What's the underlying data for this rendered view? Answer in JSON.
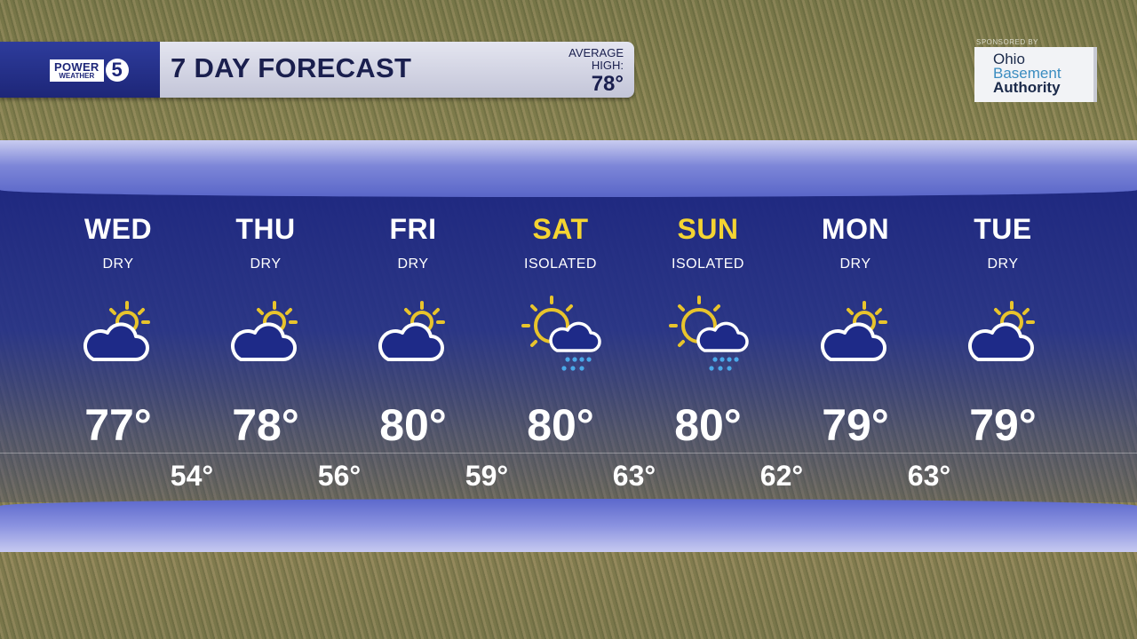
{
  "header": {
    "logo_text": "POWER OF 5 WEATHER",
    "logo_power": "POWER",
    "logo_weather": "WEATHER",
    "logo_number": "5",
    "title": "7 DAY FORECAST",
    "average_label_1": "AVERAGE",
    "average_label_2": "HIGH:",
    "average_high": "78°"
  },
  "sponsor": {
    "label": "SPONSORED BY",
    "line1": "Ohio",
    "line2": "Basement",
    "line3": "Authority"
  },
  "colors": {
    "weekend": "#f4d432",
    "weekday": "#ffffff",
    "panel": "#1c2682"
  },
  "days": [
    {
      "day": "WED",
      "cond": "DRY",
      "icon": "partly-cloudy-icon",
      "high": "77°",
      "low": "54°",
      "weekend": false
    },
    {
      "day": "THU",
      "cond": "DRY",
      "icon": "partly-cloudy-icon",
      "high": "78°",
      "low": "56°",
      "weekend": false
    },
    {
      "day": "FRI",
      "cond": "DRY",
      "icon": "partly-cloudy-icon",
      "high": "80°",
      "low": "59°",
      "weekend": false
    },
    {
      "day": "SAT",
      "cond": "ISOLATED",
      "icon": "sun-rain-icon",
      "high": "80°",
      "low": "63°",
      "weekend": true
    },
    {
      "day": "SUN",
      "cond": "ISOLATED",
      "icon": "sun-rain-icon",
      "high": "80°",
      "low": "62°",
      "weekend": true
    },
    {
      "day": "MON",
      "cond": "DRY",
      "icon": "partly-cloudy-icon",
      "high": "79°",
      "low": "63°",
      "weekend": false
    },
    {
      "day": "TUE",
      "cond": "DRY",
      "icon": "partly-cloudy-icon",
      "high": "79°",
      "low": null,
      "weekend": false
    }
  ]
}
